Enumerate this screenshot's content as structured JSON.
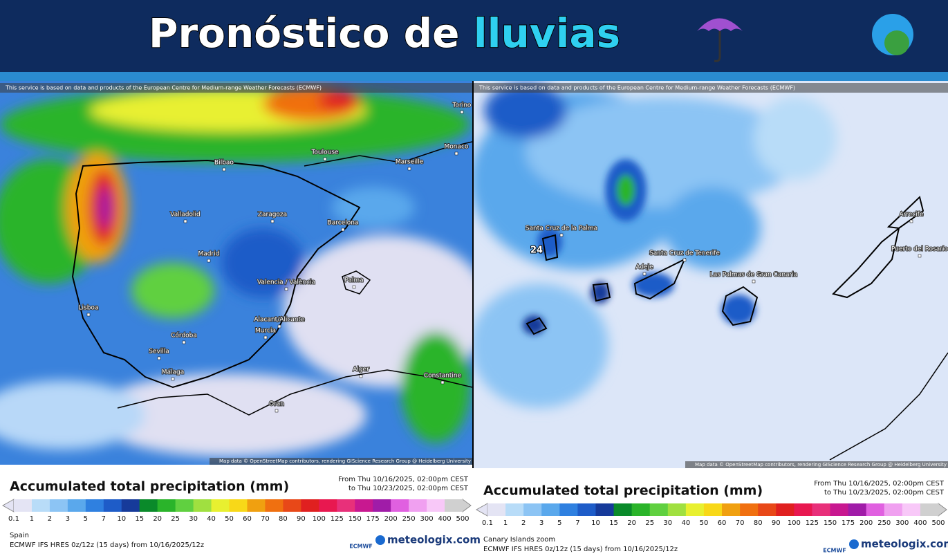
{
  "header": {
    "title": "Pronóstico de",
    "title_highlight": "lluvias"
  },
  "panels": [
    {
      "attribution_top": "This service is based on data and products of the European Centre for Medium-range Weather Forecasts (ECMWF)",
      "attribution_bottom": "Map data © OpenStreetMap contributors, rendering GIScience Research Group @ Heidelberg University",
      "places": [
        "Toulouse",
        "Marseille",
        "Monaco",
        "Torino",
        "Bilbao",
        "Valladolid",
        "Zaragoza",
        "Barcelona",
        "Madrid",
        "Valencia / València",
        "Palma",
        "Lisboa",
        "Alacant/Alicante",
        "Murcia",
        "Córdoba",
        "Sevilla",
        "Málaga",
        "Alger",
        "Constantine",
        "Oran"
      ],
      "legend": {
        "title": "Accumulated total precipitation (mm)",
        "period_from": "From Thu 10/16/2025, 02:00pm CEST",
        "period_to": "to Thu 10/23/2025, 02:00pm CEST"
      },
      "region": "Spain",
      "model": "ECMWF IFS HRES 0z/12z (15 days) from 10/16/2025/12z"
    },
    {
      "attribution_top": "This service is based on data and products of the European Centre for Medium-range Weather Forecasts (ECMWF)",
      "attribution_bottom": "Map data © OpenStreetMap contributors, rendering GIScience Research Group @ Heidelberg University",
      "places": [
        "Santa Cruz de la Palma",
        "Santa Cruz de Tenerife",
        "Adeje",
        "Las Palmas de Gran Canaria",
        "Puerto del Rosario",
        "Arrecife"
      ],
      "peak_label": "24",
      "legend": {
        "title": "Accumulated total precipitation (mm)",
        "period_from": "From Thu 10/16/2025, 02:00pm CEST",
        "period_to": "to Thu 10/23/2025, 02:00pm CEST"
      },
      "region": "Canary Islands zoom",
      "model": "ECMWF IFS HRES 0z/12z (15 days) from 10/16/2025/12z"
    }
  ],
  "scale": {
    "levels": [
      0.1,
      1,
      2,
      3,
      5,
      7,
      10,
      15,
      20,
      25,
      30,
      40,
      50,
      60,
      70,
      80,
      90,
      100,
      125,
      150,
      175,
      200,
      250,
      300,
      400,
      500
    ],
    "colors": [
      "#e4e4f4",
      "#b8dcf8",
      "#8cc4f4",
      "#5aa8ec",
      "#2f80e0",
      "#1e5cc8",
      "#163a9a",
      "#0a8a2a",
      "#2ab42a",
      "#60d040",
      "#a0e040",
      "#e8f030",
      "#f8d818",
      "#f0a010",
      "#f07010",
      "#e84818",
      "#e02020",
      "#e81850",
      "#e8307a",
      "#c81890",
      "#a01ca8",
      "#e060e0",
      "#f0a0f0",
      "#f8c8f8",
      "#d0d0d0"
    ]
  },
  "brand": "meteologix.com",
  "ecmwf": "ECMWF"
}
